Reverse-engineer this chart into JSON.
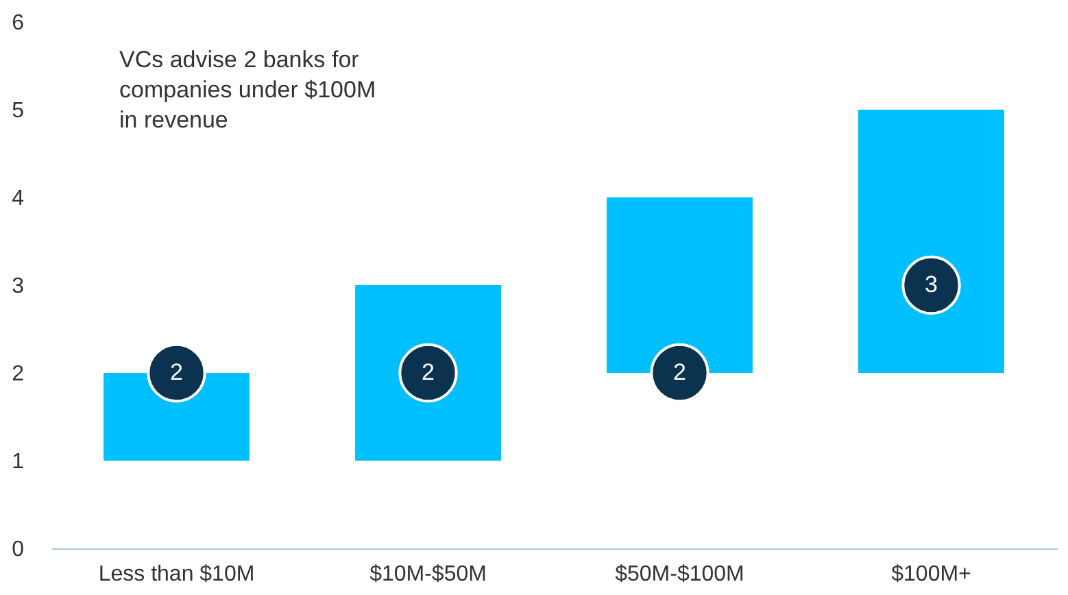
{
  "chart_data": {
    "type": "bar",
    "categories": [
      "Less than $10M",
      "$10M-$50M",
      "$50M-$100M",
      "$100M+"
    ],
    "series": [
      {
        "color": "#00bfff",
        "base": [
          1,
          1,
          2,
          2
        ],
        "values": [
          1,
          2,
          2,
          3
        ]
      },
      {
        "type": "scatter",
        "color": "#0b3350",
        "marker": "circle",
        "values": [
          2,
          2,
          2,
          3
        ],
        "value_labels": [
          "2",
          "2",
          "2",
          "3"
        ]
      }
    ],
    "ylim": [
      0,
      6
    ],
    "yticks": [
      0,
      1,
      2,
      3,
      4,
      5,
      6
    ],
    "grid": false,
    "annotations": [
      "VCs advise 2 banks for companies under $100M in revenue"
    ]
  }
}
